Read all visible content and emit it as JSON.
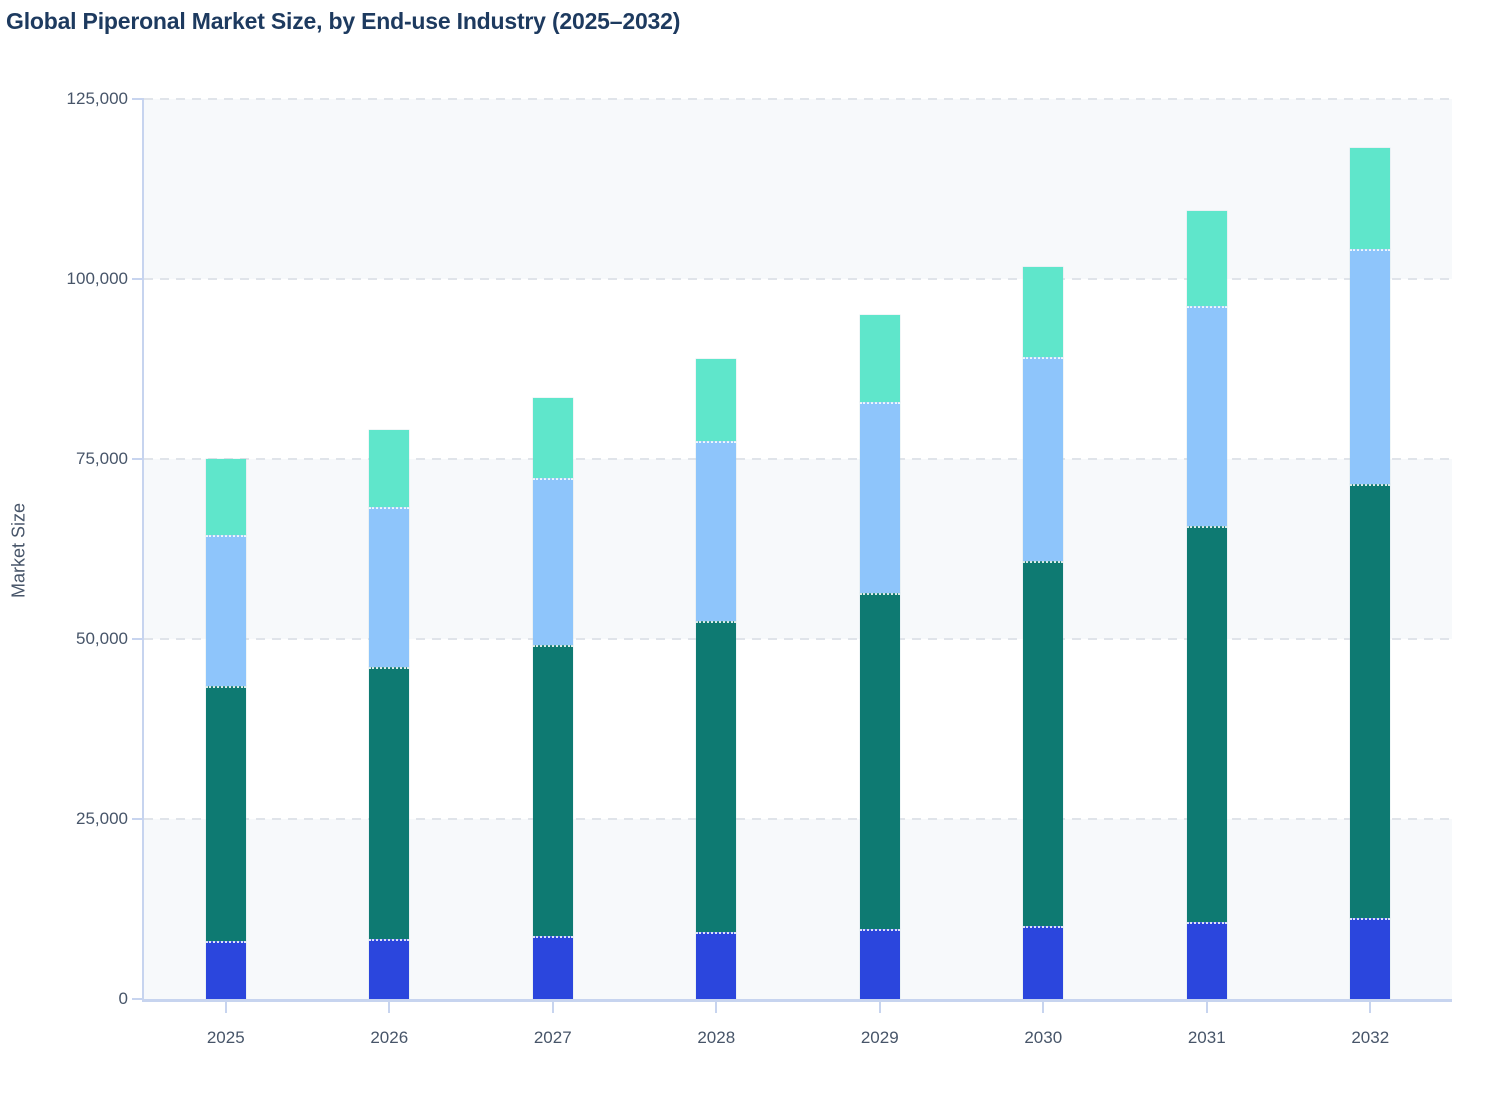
{
  "chart_data": {
    "type": "bar",
    "stacked": true,
    "title": "Global Piperonal Market Size, by End-use Industry (2025–2032)",
    "ylabel": "Market Size",
    "xlabel": "",
    "categories": [
      "2025",
      "2026",
      "2027",
      "2028",
      "2029",
      "2030",
      "2031",
      "2032"
    ],
    "series": [
      {
        "name": "segment-royal-blue",
        "color": "#2b46dd",
        "values": [
          8000,
          8400,
          8800,
          9250,
          9700,
          10200,
          10700,
          11250
        ]
      },
      {
        "name": "segment-dark-teal",
        "color": "#0e7a72",
        "values": [
          35500,
          37700,
          40400,
          43250,
          46700,
          50600,
          55000,
          60250
        ]
      },
      {
        "name": "segment-light-blue",
        "color": "#8ec5fb",
        "values": [
          21000,
          22200,
          23200,
          25000,
          26500,
          28300,
          30500,
          32700
        ]
      },
      {
        "name": "segment-mint",
        "color": "#5fe6cb",
        "values": [
          10500,
          10700,
          11100,
          11400,
          12100,
          12600,
          13200,
          14000
        ]
      }
    ],
    "stack_totals": [
      75000,
      79000,
      83500,
      88900,
      95000,
      101700,
      109400,
      118200
    ],
    "ylim": [
      0,
      125000
    ],
    "y_tick_labels": [
      "0",
      "25,000",
      "50,000",
      "75,000",
      "100,000",
      "125,000"
    ],
    "grid": "dashed-horizontal",
    "legend": "none",
    "band_color": "#f7f9fb",
    "gridline_color": "#e0e4ea",
    "axis_color": "#c7d4ef",
    "label_color": "#475569",
    "title_color": "#1d3a5f"
  }
}
